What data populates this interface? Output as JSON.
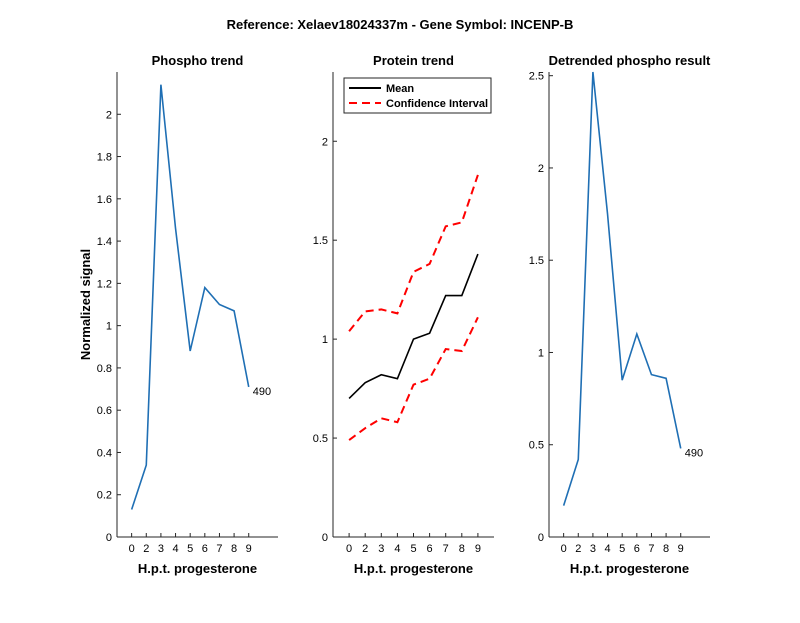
{
  "figure": {
    "suptitle": "Reference:  Xelaev18024337m - Gene Symbol:  INCENP-B"
  },
  "colors": {
    "phospho": "#1f6fb4",
    "mean": "#000000",
    "ci": "#ff0000",
    "axis": "#262626"
  },
  "chart_data": [
    {
      "type": "line",
      "title": "Phospho trend",
      "xlabel": "H.p.t. progesterone",
      "ylabel": "Normalized signal",
      "xlim": [
        -1,
        10
      ],
      "ylim": [
        0,
        2.2
      ],
      "xticks": [
        0,
        2,
        3,
        4,
        5,
        6,
        7,
        8,
        9
      ],
      "yticks": [
        0,
        0.2,
        0.4,
        0.6,
        0.8,
        1,
        1.2,
        1.4,
        1.6,
        1.8,
        2
      ],
      "ytick_labels": [
        "0",
        "0.2",
        "0.4",
        "0.6",
        "0.8",
        "1",
        "1.2",
        "1.4",
        "1.6",
        "1.8",
        "2"
      ],
      "series": [
        {
          "color_key": "phospho",
          "dash": false,
          "x": [
            0,
            1,
            2,
            3,
            4,
            5,
            6,
            7,
            8
          ],
          "y": [
            0.13,
            0.34,
            2.14,
            1.46,
            0.88,
            1.18,
            1.1,
            1.07,
            0.71
          ]
        }
      ],
      "end_label": "490"
    },
    {
      "type": "line",
      "title": "Protein trend",
      "xlabel": "H.p.t. progesterone",
      "ylabel": "",
      "xlim": [
        -1,
        9
      ],
      "ylim": [
        0,
        2.35
      ],
      "xticks": [
        0,
        2,
        3,
        4,
        5,
        6,
        7,
        8,
        9
      ],
      "yticks": [
        0,
        0.5,
        1,
        1.5,
        2
      ],
      "ytick_labels": [
        "0",
        "0.5",
        "1",
        "1.5",
        "2"
      ],
      "series": [
        {
          "name": "Mean",
          "color_key": "mean",
          "dash": false,
          "x": [
            0,
            1,
            2,
            3,
            4,
            5,
            6,
            7,
            8
          ],
          "y": [
            0.7,
            0.78,
            0.82,
            0.8,
            1.0,
            1.03,
            1.22,
            1.22,
            1.43
          ]
        },
        {
          "name": "Confidence Interval",
          "color_key": "ci",
          "dash": true,
          "x": [
            0,
            1,
            2,
            3,
            4,
            5,
            6,
            7,
            8
          ],
          "y": [
            1.04,
            1.14,
            1.15,
            1.13,
            1.34,
            1.38,
            1.57,
            1.59,
            1.83
          ]
        },
        {
          "color_key": "ci",
          "dash": true,
          "x": [
            0,
            1,
            2,
            3,
            4,
            5,
            6,
            7,
            8
          ],
          "y": [
            0.49,
            0.55,
            0.6,
            0.58,
            0.77,
            0.8,
            0.95,
            0.94,
            1.11
          ]
        }
      ],
      "legend": {
        "placement": "top-left",
        "entries": [
          {
            "label": "Mean",
            "color_key": "mean",
            "dash": false
          },
          {
            "label": "Confidence Interval",
            "color_key": "ci",
            "dash": true
          }
        ]
      }
    },
    {
      "type": "line",
      "title": "Detrended phospho result",
      "xlabel": "H.p.t. progesterone",
      "ylabel": "",
      "xlim": [
        -1,
        10
      ],
      "ylim": [
        0,
        2.52
      ],
      "xticks": [
        0,
        2,
        3,
        4,
        5,
        6,
        7,
        8,
        9
      ],
      "yticks": [
        0,
        0.5,
        1,
        1.5,
        2,
        2.5
      ],
      "ytick_labels": [
        "0",
        "0.5",
        "1",
        "1.5",
        "2",
        "2.5"
      ],
      "series": [
        {
          "color_key": "phospho",
          "dash": false,
          "x": [
            0,
            1,
            2,
            3,
            4,
            5,
            6,
            7,
            8
          ],
          "y": [
            0.17,
            0.42,
            2.52,
            1.75,
            0.85,
            1.1,
            0.88,
            0.86,
            0.48
          ]
        }
      ],
      "end_label": "490"
    }
  ]
}
